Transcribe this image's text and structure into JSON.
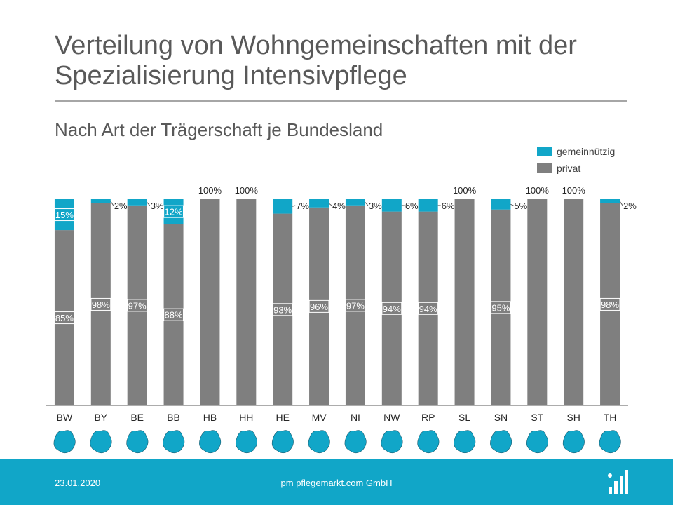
{
  "header": {
    "title": "Verteilung von Wohngemeinschaften mit der Spezialisierung Intensivpflege",
    "subtitle": "Nach Art der Trägerschaft je Bundesland"
  },
  "colors": {
    "gemeinnuetzig": "#11a6c8",
    "privat": "#7f7f7f",
    "footer": "#11a6c8"
  },
  "chart_data": {
    "type": "bar",
    "stacked": true,
    "categories": [
      "BW",
      "BY",
      "BE",
      "BB",
      "HB",
      "HH",
      "HE",
      "MV",
      "NI",
      "NW",
      "RP",
      "SL",
      "SN",
      "ST",
      "SH",
      "TH"
    ],
    "series": [
      {
        "name": "privat",
        "values": [
          85,
          98,
          97,
          88,
          100,
          100,
          93,
          96,
          97,
          94,
          94,
          100,
          95,
          100,
          100,
          98
        ],
        "labels": [
          "85%",
          "98%",
          "97%",
          "88%",
          "",
          "",
          "93%",
          "96%",
          "97%",
          "94%",
          "94%",
          "",
          "95%",
          "",
          "",
          "98%"
        ]
      },
      {
        "name": "gemeinnützig",
        "values": [
          15,
          2,
          3,
          12,
          0,
          0,
          7,
          4,
          3,
          6,
          6,
          0,
          5,
          0,
          0,
          2
        ],
        "labels": [
          "15%",
          "2%",
          "3%",
          "12%",
          "",
          "",
          "7%",
          "4%",
          "3%",
          "6%",
          "6%",
          "",
          "5%",
          "",
          "",
          "2%"
        ]
      }
    ],
    "total_labels": [
      "",
      "",
      "",
      "",
      "100%",
      "100%",
      "",
      "",
      "",
      "",
      "",
      "100%",
      "",
      "100%",
      "100%",
      ""
    ],
    "ylim": [
      0,
      100
    ],
    "legend": {
      "position": "top-right",
      "entries": [
        "gemeinnützig",
        "privat"
      ]
    }
  },
  "footer": {
    "date": "23.01.2020",
    "company": "pm pflegemarkt.com GmbH"
  }
}
